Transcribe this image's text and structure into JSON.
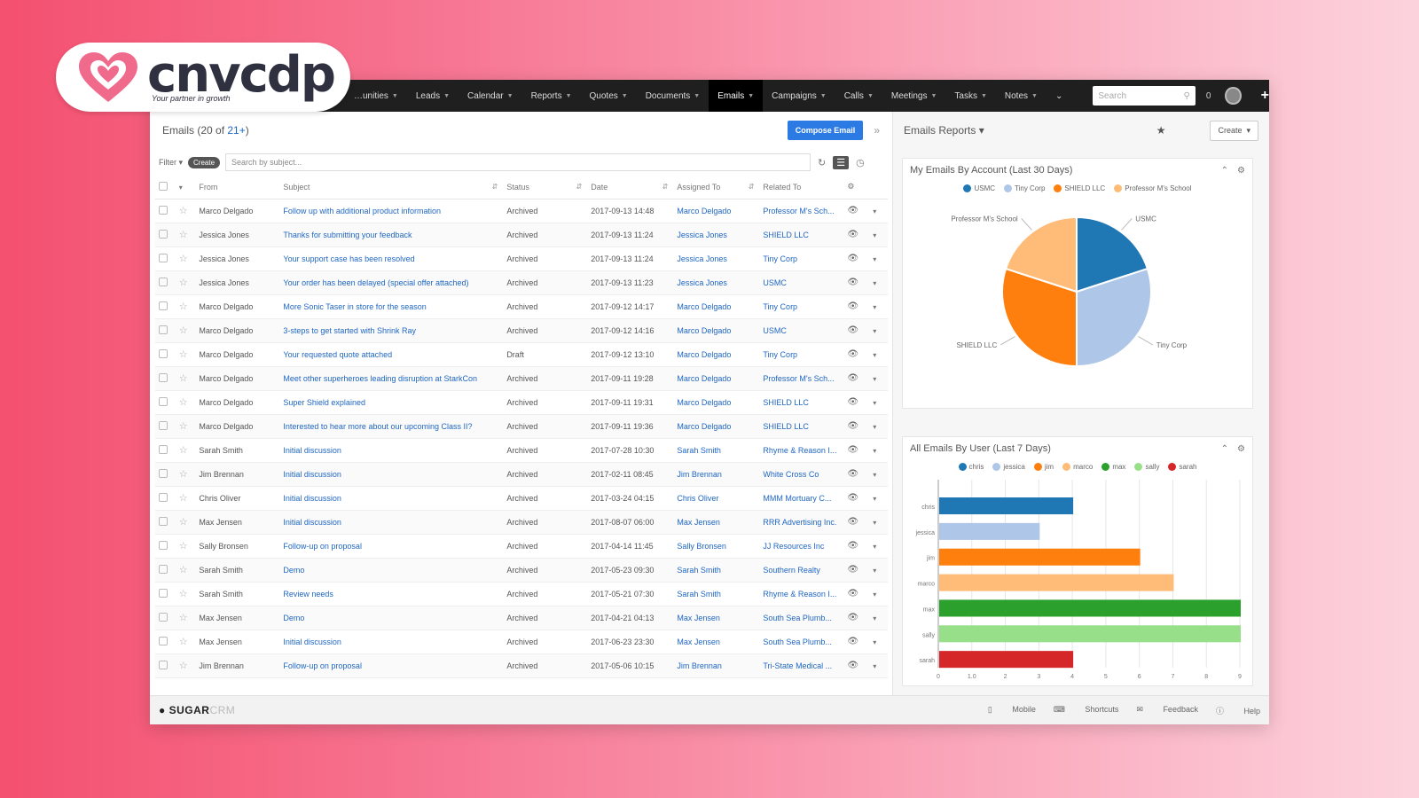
{
  "brand_logo": {
    "text": "cnvcdp",
    "tagline": "Your partner in growth",
    "heart_color": "#f06a8c"
  },
  "nav": {
    "items": [
      "…unities",
      "Leads",
      "Calendar",
      "Reports",
      "Quotes",
      "Documents",
      "Emails",
      "Campaigns",
      "Calls",
      "Meetings",
      "Tasks",
      "Notes"
    ],
    "active_index": 6,
    "search_placeholder": "Search",
    "notification_count": "0"
  },
  "list": {
    "title_prefix": "Emails (20 of ",
    "title_link": "21+",
    "title_suffix": ")",
    "compose_label": "Compose Email",
    "filter_label": "Filter",
    "filter_pill": "Create",
    "search_placeholder": "Search by subject...",
    "columns": [
      "From",
      "Subject",
      "Status",
      "Date",
      "Assigned To",
      "Related To"
    ],
    "rows": [
      {
        "from": "Marco Delgado",
        "subject": "Follow up with additional product information",
        "status": "Archived",
        "date": "2017-09-13 14:48",
        "assigned": "Marco Delgado",
        "related": "Professor M's Sch..."
      },
      {
        "from": "Jessica Jones",
        "subject": "Thanks for submitting your feedback",
        "status": "Archived",
        "date": "2017-09-13 11:24",
        "assigned": "Jessica Jones",
        "related": "SHIELD LLC"
      },
      {
        "from": "Jessica Jones",
        "subject": "Your support case has been resolved",
        "status": "Archived",
        "date": "2017-09-13 11:24",
        "assigned": "Jessica Jones",
        "related": "Tiny Corp"
      },
      {
        "from": "Jessica Jones",
        "subject": "Your order has been delayed (special offer attached)",
        "status": "Archived",
        "date": "2017-09-13 11:23",
        "assigned": "Jessica Jones",
        "related": "USMC"
      },
      {
        "from": "Marco Delgado",
        "subject": "More Sonic Taser in store for the season",
        "status": "Archived",
        "date": "2017-09-12 14:17",
        "assigned": "Marco Delgado",
        "related": "Tiny Corp"
      },
      {
        "from": "Marco Delgado",
        "subject": "3-steps to get started with Shrink Ray",
        "status": "Archived",
        "date": "2017-09-12 14:16",
        "assigned": "Marco Delgado",
        "related": "USMC"
      },
      {
        "from": "Marco Delgado",
        "subject": "Your requested quote attached",
        "status": "Draft",
        "date": "2017-09-12 13:10",
        "assigned": "Marco Delgado",
        "related": "Tiny Corp"
      },
      {
        "from": "Marco Delgado",
        "subject": "Meet other superheroes leading disruption at StarkCon",
        "status": "Archived",
        "date": "2017-09-11 19:28",
        "assigned": "Marco Delgado",
        "related": "Professor M's Sch..."
      },
      {
        "from": "Marco Delgado",
        "subject": "Super Shield explained",
        "status": "Archived",
        "date": "2017-09-11 19:31",
        "assigned": "Marco Delgado",
        "related": "SHIELD LLC"
      },
      {
        "from": "Marco Delgado",
        "subject": "Interested to hear more about our upcoming Class II?",
        "status": "Archived",
        "date": "2017-09-11 19:36",
        "assigned": "Marco Delgado",
        "related": "SHIELD LLC"
      },
      {
        "from": "Sarah Smith",
        "subject": "Initial discussion",
        "status": "Archived",
        "date": "2017-07-28 10:30",
        "assigned": "Sarah Smith",
        "related": "Rhyme & Reason I..."
      },
      {
        "from": "Jim Brennan",
        "subject": "Initial discussion",
        "status": "Archived",
        "date": "2017-02-11 08:45",
        "assigned": "Jim Brennan",
        "related": "White Cross Co"
      },
      {
        "from": "Chris Oliver",
        "subject": "Initial discussion",
        "status": "Archived",
        "date": "2017-03-24 04:15",
        "assigned": "Chris Oliver",
        "related": "MMM Mortuary C..."
      },
      {
        "from": "Max Jensen",
        "subject": "Initial discussion",
        "status": "Archived",
        "date": "2017-08-07 06:00",
        "assigned": "Max Jensen",
        "related": "RRR Advertising Inc."
      },
      {
        "from": "Sally Bronsen",
        "subject": "Follow-up on proposal",
        "status": "Archived",
        "date": "2017-04-14 11:45",
        "assigned": "Sally Bronsen",
        "related": "JJ Resources Inc"
      },
      {
        "from": "Sarah Smith",
        "subject": "Demo",
        "status": "Archived",
        "date": "2017-05-23 09:30",
        "assigned": "Sarah Smith",
        "related": "Southern Realty"
      },
      {
        "from": "Sarah Smith",
        "subject": "Review needs",
        "status": "Archived",
        "date": "2017-05-21 07:30",
        "assigned": "Sarah Smith",
        "related": "Rhyme & Reason I..."
      },
      {
        "from": "Max Jensen",
        "subject": "Demo",
        "status": "Archived",
        "date": "2017-04-21 04:13",
        "assigned": "Max Jensen",
        "related": "South Sea Plumb..."
      },
      {
        "from": "Max Jensen",
        "subject": "Initial discussion",
        "status": "Archived",
        "date": "2017-06-23 23:30",
        "assigned": "Max Jensen",
        "related": "South Sea Plumb..."
      },
      {
        "from": "Jim Brennan",
        "subject": "Follow-up on proposal",
        "status": "Archived",
        "date": "2017-05-06 10:15",
        "assigned": "Jim Brennan",
        "related": "Tri-State Medical ..."
      }
    ]
  },
  "reports": {
    "title": "Emails Reports",
    "create_label": "Create"
  },
  "chart_data": [
    {
      "type": "pie",
      "title": "My Emails By Account (Last 30 Days)",
      "categories": [
        "USMC",
        "Tiny Corp",
        "SHIELD LLC",
        "Professor M's School"
      ],
      "values": [
        2,
        3,
        3,
        2
      ],
      "slice_labels": [
        "USMC",
        "Tiny Corp",
        "SHIELD LLC",
        "Professor M's School"
      ],
      "colors": [
        "#1f77b4",
        "#aec7e8",
        "#ff7f0e",
        "#ffbb78"
      ],
      "legend": "top"
    },
    {
      "type": "bar",
      "orientation": "horizontal",
      "title": "All Emails By User (Last 7 Days)",
      "categories": [
        "chris",
        "jessica",
        "jim",
        "marco",
        "max",
        "sally",
        "sarah"
      ],
      "values": [
        4,
        3,
        6,
        7,
        9,
        9,
        4
      ],
      "colors": [
        "#1f77b4",
        "#aec7e8",
        "#ff7f0e",
        "#ffbb78",
        "#2ca02c",
        "#98df8a",
        "#d62728"
      ],
      "xlim": [
        0,
        9
      ],
      "xticks": [
        "0",
        "1.0",
        "2",
        "3",
        "4",
        "5",
        "6",
        "7",
        "8",
        "9"
      ],
      "grid": true,
      "legend": "top"
    }
  ],
  "footer": {
    "brand_bold": "SUGAR",
    "brand_thin": "CRM",
    "links": [
      "Mobile",
      "Shortcuts",
      "Feedback",
      "Help"
    ]
  }
}
